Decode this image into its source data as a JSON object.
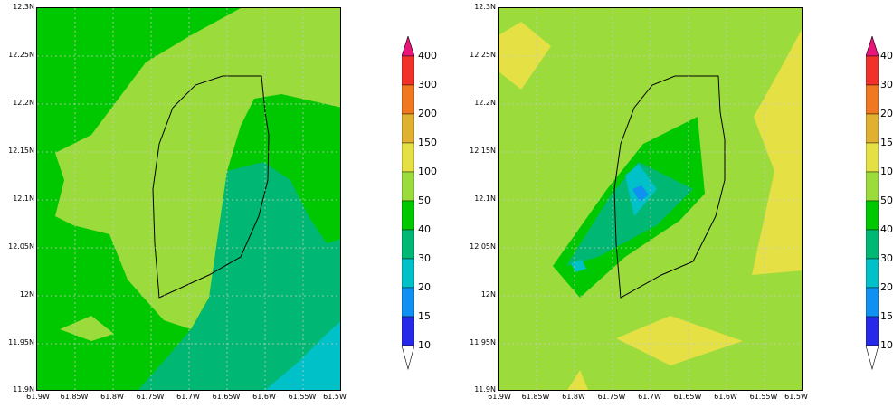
{
  "panels": [
    {
      "name": "left",
      "y_ticks": [
        "12.3N",
        "12.25N",
        "12.2N",
        "12.15N",
        "12.1N",
        "12.05N",
        "12N",
        "11.95N",
        "11.9N"
      ],
      "x_ticks": [
        "61.9W",
        "61.85W",
        "61.8W",
        "61.75W",
        "61.7W",
        "61.65W",
        "61.6W",
        "61.55W",
        "61.5W"
      ]
    },
    {
      "name": "right",
      "y_ticks": [
        "12.3N",
        "12.25N",
        "12.2N",
        "12.15N",
        "12.1N",
        "12.05N",
        "12N",
        "11.95N",
        "11.9N"
      ],
      "x_ticks": [
        "61.9W",
        "61.85W",
        "61.8W",
        "61.75W",
        "61.7W",
        "61.65W",
        "61.6W",
        "61.55W",
        "61.5W"
      ]
    }
  ],
  "colorbar": {
    "levels": [
      "400",
      "300",
      "200",
      "150",
      "100",
      "50",
      "40",
      "30",
      "20",
      "15",
      "10"
    ],
    "colors": [
      "#e8157a",
      "#f0322a",
      "#f07820",
      "#e0b030",
      "#e5e044",
      "#9bdc3c",
      "#00c800",
      "#00b874",
      "#00c0c8",
      "#1090f0",
      "#2828e8"
    ]
  }
}
